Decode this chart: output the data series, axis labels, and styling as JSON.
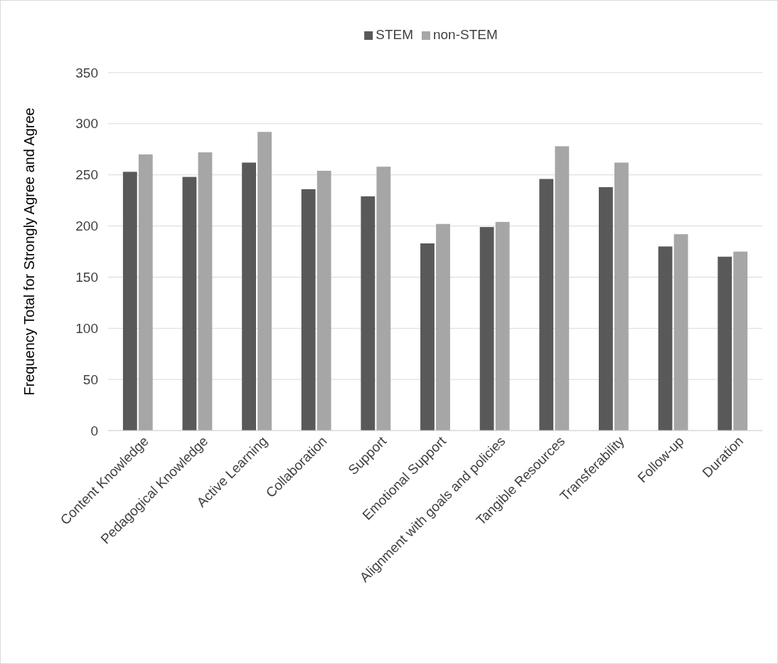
{
  "chart_data": {
    "type": "bar",
    "ylabel": "Frequency Total for Strongly Agree and Agree",
    "categories": [
      "Content Knowledge",
      "Pedagogical Knowledge",
      "Active Learning",
      "Collaboration",
      "Support",
      "Emotional Support",
      "Alignment with goals and policies",
      "Tangible Resources",
      "Transferability",
      "Follow-up",
      "Duration"
    ],
    "series": [
      {
        "name": "STEM",
        "color": "#595959",
        "values": [
          253,
          248,
          262,
          236,
          229,
          183,
          199,
          246,
          238,
          180,
          170
        ]
      },
      {
        "name": "non-STEM",
        "color": "#a6a6a6",
        "values": [
          270,
          272,
          292,
          254,
          258,
          202,
          204,
          278,
          262,
          192,
          175
        ]
      }
    ],
    "ylim": [
      0,
      350
    ],
    "yticks": [
      0,
      50,
      100,
      150,
      200,
      250,
      300,
      350
    ],
    "grid": "y",
    "legend": "top"
  }
}
